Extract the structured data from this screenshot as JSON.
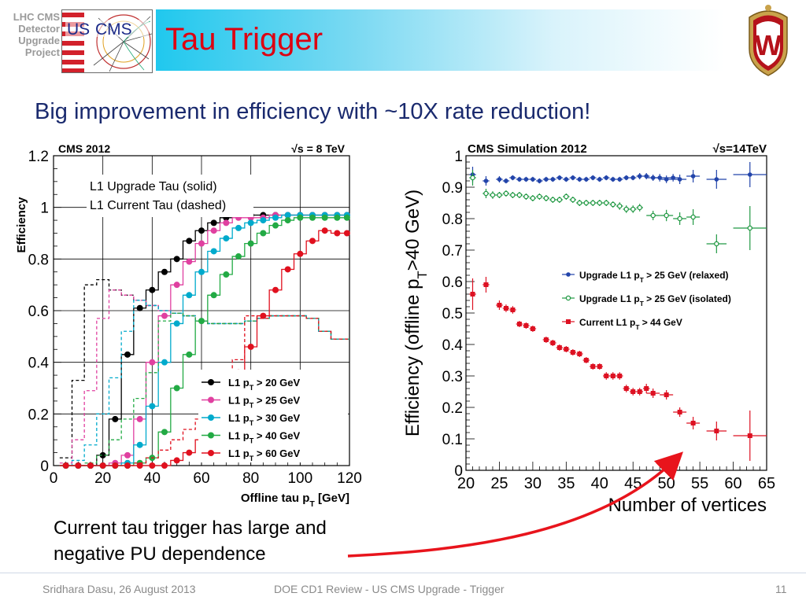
{
  "header": {
    "project_label_lines": [
      "LHC CMS",
      "Detector",
      "Upgrade",
      "Project"
    ],
    "logo_text": [
      "US",
      "CMS"
    ],
    "title": "Tau Trigger"
  },
  "subtitle": "Big improvement in efficiency with ~10X rate reduction!",
  "note_lines": [
    "Current tau trigger has large and",
    "negative PU dependence"
  ],
  "footer": {
    "left": "Sridhara Dasu, 26 August 2013",
    "center": "DOE CD1 Review - US CMS Upgrade - Trigger",
    "page": "11"
  },
  "colors": {
    "title": "#dd0011",
    "subtitle": "#1a2a6e",
    "arrow": "#e8141c",
    "uw_red": "#b5121b",
    "uw_gold": "#c9a24b"
  },
  "chart_data": [
    {
      "type": "line",
      "style": "step histogram with markers",
      "header_left": "CMS 2012",
      "header_right": "√s = 8 TeV",
      "notes": [
        "L1 Upgrade Tau (solid)",
        "L1 Current Tau (dashed)"
      ],
      "xlabel": "Offline tau p",
      "xlabel_sub": "T",
      "xlabel_unit": " [GeV]",
      "ylabel": "Efficiency",
      "xlim": [
        0,
        120
      ],
      "ylim": [
        0,
        1.2
      ],
      "x_ticks": [
        0,
        20,
        40,
        60,
        80,
        100,
        120
      ],
      "y_ticks": [
        0,
        0.2,
        0.4,
        0.6,
        0.8,
        1,
        1.2
      ],
      "y_tick_labels": [
        "0",
        "0.2",
        "0.4",
        "0.6",
        "0.8",
        "1",
        "1.2"
      ],
      "grid": "major",
      "legend_position": "bottom-right",
      "x": [
        5,
        10,
        15,
        20,
        25,
        30,
        35,
        40,
        45,
        50,
        55,
        60,
        65,
        70,
        75,
        80,
        85,
        90,
        95,
        100,
        105,
        110,
        115,
        119
      ],
      "series": [
        {
          "name": "L1 p",
          "sub": "T",
          "suffix": " > 20 GeV",
          "color": "#000000",
          "solid": [
            0,
            0,
            0,
            0.04,
            0.18,
            0.43,
            0.61,
            0.68,
            0.75,
            0.8,
            0.87,
            0.91,
            0.94,
            0.96,
            0.97,
            0.97,
            0.97,
            0.97,
            0.97,
            0.97,
            0.97,
            0.97,
            0.97,
            0.97
          ],
          "dashed": [
            0.03,
            0.33,
            0.7,
            0.72,
            0.68,
            0.66,
            0.64,
            0.62,
            0.6,
            0.59,
            0.58,
            0.56,
            0.55,
            0.55,
            0.55,
            0.56,
            0.57,
            0.58,
            0.58,
            0.58,
            0.57,
            0.52,
            0.49,
            0.49
          ]
        },
        {
          "name": "L1 p",
          "sub": "T",
          "suffix": " > 25 GeV",
          "color": "#e040a0",
          "solid": [
            0,
            0,
            0,
            0,
            0.01,
            0.04,
            0.18,
            0.4,
            0.58,
            0.7,
            0.79,
            0.86,
            0.91,
            0.94,
            0.96,
            0.96,
            0.96,
            0.97,
            0.97,
            0.97,
            0.97,
            0.97,
            0.97,
            0.97
          ],
          "dashed": [
            0.01,
            0.1,
            0.29,
            0.57,
            0.68,
            0.66,
            0.64,
            0.62,
            0.6,
            0.59,
            0.58,
            0.56,
            0.55,
            0.55,
            0.55,
            0.56,
            0.57,
            0.58,
            0.58,
            0.58,
            0.57,
            0.52,
            0.49,
            0.49
          ]
        },
        {
          "name": "L1 p",
          "sub": "T",
          "suffix": " > 30 GeV",
          "color": "#00aacc",
          "solid": [
            0,
            0,
            0,
            0,
            0,
            0.01,
            0.08,
            0.23,
            0.4,
            0.55,
            0.66,
            0.75,
            0.83,
            0.88,
            0.92,
            0.94,
            0.95,
            0.96,
            0.97,
            0.97,
            0.97,
            0.97,
            0.97,
            0.97
          ],
          "dashed": [
            0,
            0.02,
            0.08,
            0.2,
            0.34,
            0.52,
            0.64,
            0.62,
            0.6,
            0.59,
            0.58,
            0.56,
            0.55,
            0.55,
            0.55,
            0.56,
            0.57,
            0.58,
            0.58,
            0.58,
            0.57,
            0.52,
            0.49,
            0.49
          ]
        },
        {
          "name": "L1 p",
          "sub": "T",
          "suffix": " > 40 GeV",
          "color": "#22aa44",
          "solid": [
            0,
            0,
            0,
            0,
            0,
            0,
            0.01,
            0.03,
            0.13,
            0.3,
            0.43,
            0.56,
            0.66,
            0.74,
            0.81,
            0.86,
            0.9,
            0.93,
            0.95,
            0.96,
            0.96,
            0.96,
            0.96,
            0.96
          ],
          "dashed": [
            0,
            0,
            0.01,
            0.04,
            0.1,
            0.18,
            0.26,
            0.36,
            0.56,
            0.59,
            0.58,
            0.56,
            0.55,
            0.55,
            0.55,
            0.56,
            0.57,
            0.58,
            0.58,
            0.58,
            0.57,
            0.52,
            0.49,
            0.49
          ]
        },
        {
          "name": "L1 p",
          "sub": "T",
          "suffix": " > 60 GeV",
          "color": "#e0101e",
          "solid": [
            0,
            0,
            0,
            0,
            0,
            0,
            0,
            0,
            0,
            0.02,
            0.05,
            0.1,
            0.17,
            0.26,
            0.36,
            0.46,
            0.58,
            0.68,
            0.76,
            0.82,
            0.87,
            0.91,
            0.9,
            0.9
          ],
          "dashed": [
            0,
            0,
            0,
            0,
            0,
            0,
            0.01,
            0.03,
            0.06,
            0.1,
            0.14,
            0.18,
            0.23,
            0.3,
            0.41,
            0.58,
            0.57,
            0.58,
            0.58,
            0.58,
            0.57,
            0.52,
            0.49,
            0.49
          ]
        }
      ]
    },
    {
      "type": "scatter",
      "style": "points with error bars",
      "header_left": "CMS Simulation 2012",
      "header_right": "√s=14TeV",
      "xlabel": "Number of vertices",
      "ylabel": "Efficiency (offline p",
      "ylabel_sub": "T",
      "ylabel_suffix": ">40 GeV)",
      "xlim": [
        20,
        65
      ],
      "ylim": [
        0,
        1
      ],
      "x_ticks": [
        20,
        25,
        30,
        35,
        40,
        45,
        50,
        55,
        60,
        65
      ],
      "y_ticks": [
        0,
        0.1,
        0.2,
        0.3,
        0.4,
        0.5,
        0.6,
        0.7,
        0.8,
        0.9,
        1
      ],
      "y_tick_labels": [
        "0",
        "0.1",
        "0.2",
        "0.3",
        "0.4",
        "0.5",
        "0.6",
        "0.7",
        "0.8",
        "0.9",
        "1"
      ],
      "legend_position": "center-right",
      "series": [
        {
          "name": "Upgrade L1 p",
          "sub": "T",
          "suffix": " > 25 GeV (relaxed)",
          "color": "#2244aa",
          "marker": "filled-circle",
          "points": [
            [
              21,
              0.94,
              0.025
            ],
            [
              23,
              0.92,
              0.015
            ],
            [
              25,
              0.925,
              0.01
            ],
            [
              26,
              0.92,
              0.008
            ],
            [
              27,
              0.93,
              0.008
            ],
            [
              28,
              0.925,
              0.008
            ],
            [
              29,
              0.925,
              0.008
            ],
            [
              30,
              0.925,
              0.008
            ],
            [
              31,
              0.92,
              0.008
            ],
            [
              32,
              0.925,
              0.008
            ],
            [
              33,
              0.925,
              0.008
            ],
            [
              34,
              0.93,
              0.008
            ],
            [
              35,
              0.925,
              0.008
            ],
            [
              36,
              0.93,
              0.008
            ],
            [
              37,
              0.925,
              0.008
            ],
            [
              38,
              0.925,
              0.008
            ],
            [
              39,
              0.93,
              0.008
            ],
            [
              40,
              0.925,
              0.008
            ],
            [
              41,
              0.93,
              0.008
            ],
            [
              42,
              0.925,
              0.008
            ],
            [
              43,
              0.925,
              0.008
            ],
            [
              44,
              0.93,
              0.008
            ],
            [
              45,
              0.93,
              0.008
            ],
            [
              46,
              0.935,
              0.01
            ],
            [
              47,
              0.935,
              0.01
            ],
            [
              48,
              0.93,
              0.01
            ],
            [
              49,
              0.93,
              0.012
            ],
            [
              50,
              0.925,
              0.012
            ],
            [
              51,
              0.93,
              0.012
            ],
            [
              52,
              0.925,
              0.015
            ],
            [
              54,
              0.935,
              0.02
            ],
            [
              57.5,
              0.925,
              0.03
            ],
            [
              62.5,
              0.94,
              0.04
            ]
          ]
        },
        {
          "name": "Upgrade L1 p",
          "sub": "T",
          "suffix": " > 25 GeV (isolated)",
          "color": "#229944",
          "marker": "open-circle",
          "points": [
            [
              21,
              0.93,
              0.025
            ],
            [
              23,
              0.88,
              0.015
            ],
            [
              24,
              0.875,
              0.012
            ],
            [
              25,
              0.875,
              0.01
            ],
            [
              26,
              0.88,
              0.01
            ],
            [
              27,
              0.875,
              0.01
            ],
            [
              28,
              0.875,
              0.01
            ],
            [
              29,
              0.87,
              0.01
            ],
            [
              30,
              0.865,
              0.01
            ],
            [
              31,
              0.87,
              0.01
            ],
            [
              32,
              0.865,
              0.01
            ],
            [
              33,
              0.86,
              0.01
            ],
            [
              34,
              0.86,
              0.01
            ],
            [
              35,
              0.87,
              0.01
            ],
            [
              36,
              0.86,
              0.01
            ],
            [
              37,
              0.85,
              0.01
            ],
            [
              38,
              0.85,
              0.01
            ],
            [
              39,
              0.85,
              0.01
            ],
            [
              40,
              0.85,
              0.01
            ],
            [
              41,
              0.85,
              0.01
            ],
            [
              42,
              0.845,
              0.01
            ],
            [
              43,
              0.84,
              0.012
            ],
            [
              44,
              0.83,
              0.012
            ],
            [
              45,
              0.83,
              0.012
            ],
            [
              46,
              0.835,
              0.012
            ],
            [
              48,
              0.81,
              0.015
            ],
            [
              50,
              0.81,
              0.018
            ],
            [
              52,
              0.8,
              0.02
            ],
            [
              54,
              0.805,
              0.025
            ],
            [
              57.5,
              0.72,
              0.03
            ],
            [
              62.5,
              0.77,
              0.07
            ]
          ]
        },
        {
          "name": "Current L1 p",
          "sub": "T",
          "suffix": " > 44 GeV",
          "color": "#dd1122",
          "marker": "filled-square",
          "points": [
            [
              21,
              0.56,
              0.05
            ],
            [
              23,
              0.59,
              0.025
            ],
            [
              25,
              0.525,
              0.015
            ],
            [
              26,
              0.515,
              0.012
            ],
            [
              27,
              0.51,
              0.012
            ],
            [
              28,
              0.465,
              0.01
            ],
            [
              29,
              0.46,
              0.01
            ],
            [
              30,
              0.45,
              0.01
            ],
            [
              32,
              0.415,
              0.01
            ],
            [
              33,
              0.405,
              0.01
            ],
            [
              34,
              0.39,
              0.01
            ],
            [
              35,
              0.385,
              0.01
            ],
            [
              36,
              0.375,
              0.01
            ],
            [
              37,
              0.37,
              0.01
            ],
            [
              38,
              0.35,
              0.01
            ],
            [
              39,
              0.33,
              0.01
            ],
            [
              40,
              0.33,
              0.01
            ],
            [
              41,
              0.3,
              0.012
            ],
            [
              42,
              0.3,
              0.012
            ],
            [
              43,
              0.3,
              0.012
            ],
            [
              44,
              0.26,
              0.012
            ],
            [
              45,
              0.25,
              0.012
            ],
            [
              46,
              0.25,
              0.012
            ],
            [
              47,
              0.26,
              0.015
            ],
            [
              48,
              0.245,
              0.015
            ],
            [
              50,
              0.24,
              0.015
            ],
            [
              52,
              0.185,
              0.015
            ],
            [
              54,
              0.15,
              0.02
            ],
            [
              57.5,
              0.125,
              0.03
            ],
            [
              62.5,
              0.11,
              0.08
            ]
          ]
        }
      ]
    }
  ]
}
